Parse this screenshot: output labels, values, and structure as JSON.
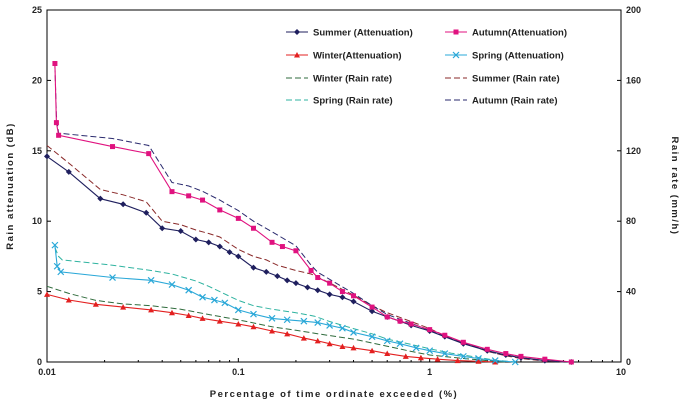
{
  "chart_data": {
    "type": "line",
    "xlabel": "Percentage of time ordinate exceeded (%)",
    "ylabel": "Rain attenuation (dB)",
    "y2label": "Rain rate (mm/h)",
    "x_scale": "log",
    "xlim": [
      0.01,
      10
    ],
    "ylim": [
      0,
      25
    ],
    "y2lim": [
      0,
      200
    ],
    "x_ticks": [
      "0.01",
      "0.1",
      "1",
      "10"
    ],
    "y_ticks": [
      "0",
      "5",
      "10",
      "15",
      "20",
      "25"
    ],
    "y2_ticks": [
      "0",
      "40",
      "80",
      "120",
      "160",
      "200"
    ],
    "legend_position": "top-right",
    "series": [
      {
        "name": "Summer (Attenuation)",
        "axis": "left",
        "color": "#1f1f5e",
        "dash": "solid",
        "marker": "diamond",
        "x": [
          0.01,
          0.013,
          0.019,
          0.025,
          0.033,
          0.04,
          0.05,
          0.06,
          0.07,
          0.08,
          0.09,
          0.1,
          0.12,
          0.14,
          0.16,
          0.18,
          0.2,
          0.23,
          0.26,
          0.3,
          0.35,
          0.4,
          0.5,
          0.6,
          0.7,
          0.8,
          1.0,
          1.2,
          1.5,
          2.0,
          2.5,
          3.0,
          4.0,
          5.5
        ],
        "y": [
          14.6,
          13.5,
          11.6,
          11.2,
          10.6,
          9.5,
          9.3,
          8.7,
          8.5,
          8.2,
          7.8,
          7.5,
          6.7,
          6.4,
          6.1,
          5.8,
          5.6,
          5.3,
          5.1,
          4.8,
          4.6,
          4.3,
          3.6,
          3.2,
          2.9,
          2.6,
          2.2,
          1.8,
          1.3,
          0.8,
          0.5,
          0.3,
          0.1,
          0.0
        ]
      },
      {
        "name": "Autumn(Attenuation)",
        "axis": "left",
        "color": "#e0127f",
        "dash": "solid",
        "marker": "square",
        "x": [
          0.011,
          0.0112,
          0.0115,
          0.022,
          0.034,
          0.045,
          0.055,
          0.065,
          0.08,
          0.1,
          0.12,
          0.15,
          0.17,
          0.2,
          0.24,
          0.26,
          0.3,
          0.35,
          0.4,
          0.5,
          0.6,
          0.7,
          0.8,
          1.0,
          1.2,
          1.5,
          2.0,
          2.5,
          3.0,
          4.0,
          5.5
        ],
        "y": [
          21.2,
          17.0,
          16.1,
          15.3,
          14.8,
          12.1,
          11.8,
          11.5,
          10.8,
          10.2,
          9.5,
          8.5,
          8.2,
          7.9,
          6.5,
          6.0,
          5.6,
          5.0,
          4.7,
          3.9,
          3.2,
          2.9,
          2.7,
          2.3,
          1.9,
          1.4,
          0.9,
          0.6,
          0.4,
          0.2,
          0.0
        ]
      },
      {
        "name": "Winter(Attenuation)",
        "axis": "left",
        "color": "#e32020",
        "dash": "solid",
        "marker": "triangle",
        "x": [
          0.01,
          0.013,
          0.018,
          0.025,
          0.035,
          0.045,
          0.055,
          0.065,
          0.08,
          0.1,
          0.12,
          0.15,
          0.18,
          0.22,
          0.26,
          0.3,
          0.35,
          0.4,
          0.5,
          0.6,
          0.75,
          0.9,
          1.1,
          1.4,
          1.8,
          2.2
        ],
        "y": [
          4.8,
          4.4,
          4.1,
          3.9,
          3.7,
          3.5,
          3.3,
          3.1,
          2.9,
          2.7,
          2.5,
          2.2,
          2.0,
          1.7,
          1.5,
          1.3,
          1.1,
          1.0,
          0.8,
          0.6,
          0.4,
          0.3,
          0.2,
          0.1,
          0.05,
          0.0
        ]
      },
      {
        "name": "Spring (Attenuation)",
        "axis": "left",
        "color": "#2aa8d8",
        "dash": "solid",
        "marker": "x",
        "x": [
          0.011,
          0.0113,
          0.0118,
          0.022,
          0.035,
          0.045,
          0.055,
          0.065,
          0.075,
          0.085,
          0.1,
          0.12,
          0.15,
          0.18,
          0.22,
          0.26,
          0.3,
          0.35,
          0.4,
          0.5,
          0.6,
          0.7,
          0.85,
          1.0,
          1.2,
          1.5,
          1.8,
          2.2,
          2.8
        ],
        "y": [
          8.3,
          6.8,
          6.4,
          6.0,
          5.8,
          5.5,
          5.1,
          4.6,
          4.4,
          4.2,
          3.7,
          3.4,
          3.1,
          3.0,
          2.9,
          2.8,
          2.6,
          2.4,
          2.1,
          1.8,
          1.5,
          1.3,
          1.0,
          0.8,
          0.6,
          0.4,
          0.25,
          0.1,
          0.0
        ]
      },
      {
        "name": "Winter (Rain rate)",
        "axis": "right",
        "color": "#2f6b3c",
        "dash": "dashed",
        "marker": "none",
        "x": [
          0.01,
          0.013,
          0.018,
          0.025,
          0.035,
          0.05,
          0.07,
          0.1,
          0.15,
          0.2,
          0.3,
          0.4,
          0.6,
          0.8,
          1.0,
          1.5,
          2.0,
          2.5
        ],
        "y": [
          43,
          39,
          35,
          33,
          32,
          30,
          27,
          24,
          20,
          18,
          15,
          13,
          9,
          6,
          4,
          2,
          0.8,
          0
        ]
      },
      {
        "name": "Summer (Rain rate)",
        "axis": "right",
        "color": "#8a2a2a",
        "dash": "dashed",
        "marker": "none",
        "x": [
          0.01,
          0.013,
          0.019,
          0.025,
          0.033,
          0.04,
          0.05,
          0.06,
          0.07,
          0.08,
          0.1,
          0.12,
          0.14,
          0.16,
          0.2,
          0.24,
          0.3,
          0.4,
          0.5,
          0.6,
          0.8,
          1.0,
          1.2,
          1.5,
          2.0,
          2.5,
          3.0,
          4.0,
          5.0
        ],
        "y": [
          123,
          113,
          98,
          95,
          91,
          80,
          78,
          75,
          73,
          71,
          64,
          60,
          58,
          55,
          52,
          50,
          45,
          38,
          32,
          28,
          23,
          19,
          15,
          11,
          6,
          3.5,
          2,
          0.5,
          0
        ]
      },
      {
        "name": "Spring (Rain rate)",
        "axis": "right",
        "color": "#2fb3a0",
        "dash": "dashed",
        "marker": "none",
        "x": [
          0.011,
          0.0115,
          0.012,
          0.022,
          0.035,
          0.045,
          0.06,
          0.07,
          0.08,
          0.1,
          0.12,
          0.15,
          0.2,
          0.25,
          0.3,
          0.4,
          0.5,
          0.6,
          0.8,
          1.0,
          1.3,
          1.7,
          2.2,
          2.8
        ],
        "y": [
          65,
          60,
          58,
          55,
          52,
          50,
          46,
          43,
          40,
          35,
          32,
          30,
          28,
          26,
          23,
          19,
          16,
          13,
          10,
          7.5,
          5,
          3,
          1,
          0
        ]
      },
      {
        "name": "Autumn (Rain rate)",
        "axis": "right",
        "color": "#2a2a6e",
        "dash": "dashed",
        "marker": "none",
        "x": [
          0.011,
          0.0112,
          0.0115,
          0.022,
          0.034,
          0.045,
          0.055,
          0.065,
          0.08,
          0.1,
          0.12,
          0.15,
          0.2,
          0.24,
          0.26,
          0.3,
          0.4,
          0.5,
          0.6,
          0.8,
          1.0,
          1.3,
          1.7,
          2.2,
          3.0,
          4.0,
          5.0
        ],
        "y": [
          168,
          140,
          130,
          127,
          123,
          102,
          100,
          97,
          92,
          86,
          80,
          74,
          66,
          55,
          51,
          47,
          39,
          32,
          27,
          22,
          18,
          13,
          9,
          5,
          2.5,
          0.8,
          0
        ]
      }
    ]
  }
}
